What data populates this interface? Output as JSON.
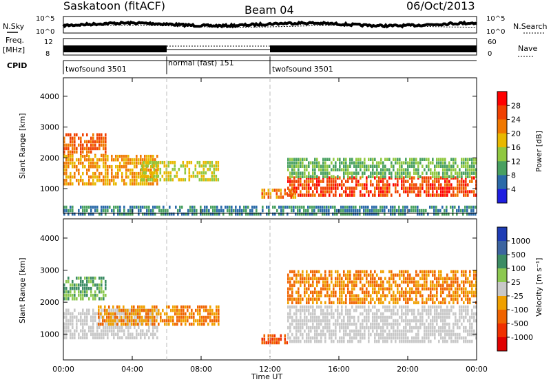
{
  "header": {
    "station": "Saskatoon (fitACF)",
    "beam": "Beam 04",
    "date": "06/Oct/2013"
  },
  "status_panels": {
    "nsky_label": "N.Sky",
    "nsky_ticks": [
      "10^5",
      "10^0"
    ],
    "nsearch_label": "N.Search",
    "nsearch_ticks": [
      "10^5",
      "10^0"
    ],
    "freq_label": "Freq.",
    "freq_unit": "[MHz]",
    "freq_ticks": [
      "12",
      "8"
    ],
    "nave_label": "Nave",
    "nave_ticks": [
      "60",
      "0"
    ],
    "cpid_label": "CPID",
    "cpid_segments": [
      {
        "label": "twofsound 3501",
        "start_h": 0,
        "end_h": 6
      },
      {
        "label": "normal (fast) 151",
        "start_h": 6,
        "end_h": 12
      },
      {
        "label": "twofsound 3501",
        "start_h": 12,
        "end_h": 24
      }
    ]
  },
  "power_colorbar": {
    "label": "Power [dB]",
    "ticks": [
      "28",
      "24",
      "20",
      "16",
      "12",
      "8",
      "4"
    ],
    "colors": [
      "#ff0000",
      "#f04000",
      "#f07800",
      "#e8b800",
      "#90c840",
      "#48a060",
      "#2a6aa8",
      "#1e1ee0"
    ]
  },
  "velocity_colorbar": {
    "label": "Velocity [m s⁻¹]",
    "ticks": [
      "1000",
      "500",
      "100",
      "25",
      "-25",
      "-100",
      "-500",
      "-1000"
    ],
    "colors": [
      "#1e3cb4",
      "#3c64a0",
      "#3c8c64",
      "#8cc850",
      "#c8c8c8",
      "#f0a000",
      "#f06400",
      "#f03000",
      "#e00000"
    ]
  },
  "chart_data": [
    {
      "type": "heatmap",
      "title": "",
      "xlabel": "",
      "ylabel": "Slant Range [km]",
      "xlim": [
        0,
        24
      ],
      "ylim": [
        200,
        4600
      ],
      "x_ticks": [
        "00:00",
        "04:00",
        "08:00",
        "12:00",
        "16:00",
        "20:00",
        "00:00"
      ],
      "y_ticks": [
        1000,
        2000,
        3000,
        4000
      ],
      "dashed_vlines_h": [
        6,
        12
      ],
      "quantity": "Power [dB]",
      "regions": [
        {
          "t0": 0,
          "t1": 2.5,
          "r0": 2100,
          "r1": 2800,
          "value": 24
        },
        {
          "t0": 0,
          "t1": 5.5,
          "r0": 1200,
          "r1": 2100,
          "value": 20
        },
        {
          "t0": 4.5,
          "t1": 9,
          "r0": 1300,
          "r1": 1900,
          "value": 16
        },
        {
          "t0": 13,
          "t1": 24,
          "r0": 800,
          "r1": 1400,
          "value": 26
        },
        {
          "t0": 13,
          "t1": 24,
          "r0": 1400,
          "r1": 2000,
          "value": 12
        },
        {
          "t0": 11.5,
          "t1": 13.5,
          "r0": 700,
          "r1": 1000,
          "value": 22
        },
        {
          "t0": 0,
          "t1": 24,
          "r0": 200,
          "r1": 450,
          "value": 8
        }
      ]
    },
    {
      "type": "heatmap",
      "title": "",
      "xlabel": "Time UT",
      "ylabel": "Slant Range [km]",
      "xlim": [
        0,
        24
      ],
      "ylim": [
        200,
        4600
      ],
      "x_ticks": [
        "00:00",
        "04:00",
        "08:00",
        "12:00",
        "16:00",
        "20:00",
        "00:00"
      ],
      "y_ticks": [
        1000,
        2000,
        3000,
        4000
      ],
      "dashed_vlines_h": [
        6,
        12
      ],
      "quantity": "Velocity [m s^-1]",
      "regions": [
        {
          "t0": 0,
          "t1": 2.5,
          "r0": 2100,
          "r1": 2800,
          "value": 100
        },
        {
          "t0": 0,
          "t1": 5.5,
          "r0": 900,
          "r1": 1800,
          "value": 0
        },
        {
          "t0": 2,
          "t1": 9,
          "r0": 1300,
          "r1": 1900,
          "value": -100
        },
        {
          "t0": 13,
          "t1": 24,
          "r0": 800,
          "r1": 1900,
          "value": 0
        },
        {
          "t0": 11.5,
          "t1": 13,
          "r0": 700,
          "r1": 1000,
          "value": -500
        },
        {
          "t0": 13,
          "t1": 24,
          "r0": 2000,
          "r1": 3000,
          "value": -100
        }
      ]
    }
  ]
}
